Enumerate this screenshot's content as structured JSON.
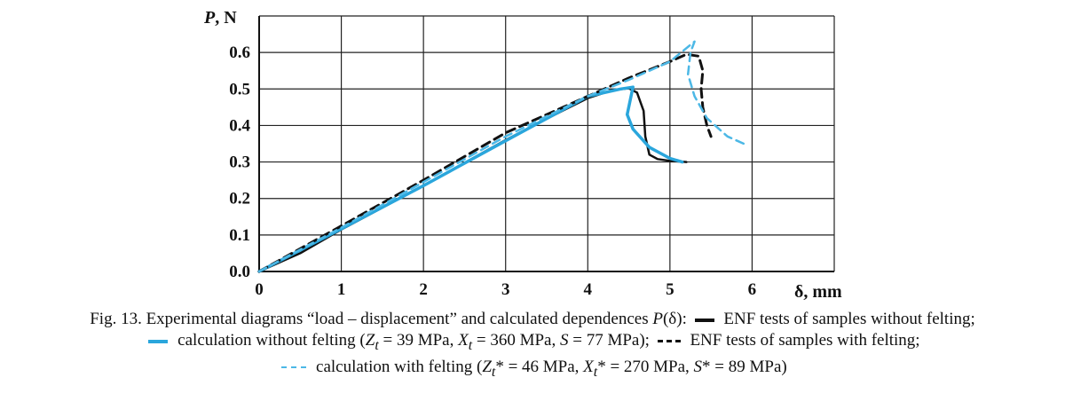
{
  "chart_data": {
    "type": "line",
    "xlabel": "δ, mm",
    "ylabel": "P, N",
    "xlim": [
      0,
      7
    ],
    "ylim": [
      0,
      0.7
    ],
    "x_ticks": [
      "0",
      "1",
      "2",
      "3",
      "4",
      "5",
      "6"
    ],
    "y_ticks": [
      "0.0",
      "0.1",
      "0.2",
      "0.3",
      "0.4",
      "0.5",
      "0.6"
    ],
    "grid": true,
    "series": [
      {
        "name": "ENF tests of samples without felting",
        "style": "solid",
        "color": "#111111",
        "points": [
          [
            0,
            0
          ],
          [
            0.5,
            0.05
          ],
          [
            1,
            0.115
          ],
          [
            2,
            0.235
          ],
          [
            3,
            0.36
          ],
          [
            3.6,
            0.43
          ],
          [
            4,
            0.475
          ],
          [
            4.3,
            0.497
          ],
          [
            4.5,
            0.502
          ],
          [
            4.6,
            0.49
          ],
          [
            4.68,
            0.44
          ],
          [
            4.7,
            0.37
          ],
          [
            4.75,
            0.32
          ],
          [
            4.85,
            0.308
          ],
          [
            5.0,
            0.303
          ],
          [
            5.2,
            0.3
          ]
        ]
      },
      {
        "name": "calculation without felting",
        "style": "solid",
        "color": "#2aa6dc",
        "points": [
          [
            0,
            0
          ],
          [
            1,
            0.117
          ],
          [
            2,
            0.235
          ],
          [
            3,
            0.358
          ],
          [
            4,
            0.48
          ],
          [
            4.4,
            0.5
          ],
          [
            4.55,
            0.505
          ],
          [
            4.48,
            0.43
          ],
          [
            4.55,
            0.39
          ],
          [
            4.75,
            0.34
          ],
          [
            5.0,
            0.31
          ],
          [
            5.15,
            0.3
          ]
        ]
      },
      {
        "name": "ENF tests of samples with felting",
        "style": "dashed",
        "color": "#111111",
        "points": [
          [
            0,
            0
          ],
          [
            1,
            0.125
          ],
          [
            2,
            0.25
          ],
          [
            3,
            0.38
          ],
          [
            4,
            0.48
          ],
          [
            4.5,
            0.53
          ],
          [
            5,
            0.575
          ],
          [
            5.2,
            0.595
          ],
          [
            5.35,
            0.59
          ],
          [
            5.4,
            0.55
          ],
          [
            5.38,
            0.5
          ],
          [
            5.4,
            0.45
          ],
          [
            5.45,
            0.4
          ],
          [
            5.5,
            0.37
          ]
        ]
      },
      {
        "name": "calculation with felting",
        "style": "dashed",
        "color": "#4cb8e6",
        "points": [
          [
            0,
            0
          ],
          [
            1,
            0.12
          ],
          [
            2,
            0.245
          ],
          [
            3,
            0.37
          ],
          [
            4,
            0.48
          ],
          [
            4.5,
            0.525
          ],
          [
            5,
            0.575
          ],
          [
            5.3,
            0.63
          ],
          [
            5.25,
            0.6
          ],
          [
            5.22,
            0.54
          ],
          [
            5.3,
            0.48
          ],
          [
            5.45,
            0.42
          ],
          [
            5.7,
            0.37
          ],
          [
            5.95,
            0.345
          ]
        ]
      }
    ]
  },
  "caption": {
    "line1_a": "Fig. 13. Experimental diagrams “load – displacement” and calculated dependences ",
    "line1_p": "P",
    "line1_b": "(δ): ",
    "line1_c": " ENF tests of samples without felting;",
    "line2_a": " calculation without felting (",
    "line2_b": " = 39 MPa, ",
    "line2_c": " = 360 MPa, ",
    "line2_d": " = 77 MPa); ",
    "line2_e": " ENF tests of samples with felting;",
    "line3_a": " calculation with felting (",
    "line3_b": "* = 46 MPa, ",
    "line3_c": "* = 270 MPa, ",
    "line3_d": "* = 89 MPa)",
    "sym_Z": "Z",
    "sym_X": "X",
    "sym_t": "t",
    "sym_S": "S"
  }
}
